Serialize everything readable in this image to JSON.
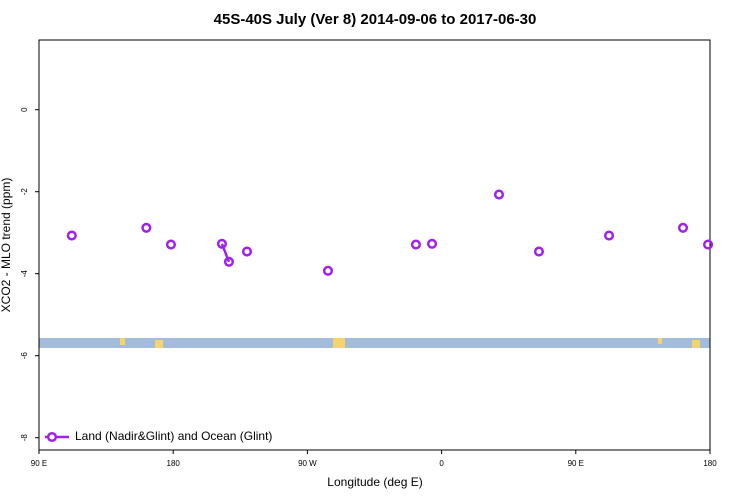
{
  "chart_data": {
    "type": "scatter",
    "title": "45S-40S July (Ver 8)   2014-09-06 to 2017-06-30",
    "x_label": "Longitude (deg E)",
    "y_label": "XCO2 - MLO trend (ppm)",
    "xlim": [
      90,
      540
    ],
    "ylim": [
      -8.3,
      1.7
    ],
    "xticks": [
      {
        "value": 90,
        "label": "90 E"
      },
      {
        "value": 180,
        "label": "180"
      },
      {
        "value": 270,
        "label": "90 W"
      },
      {
        "value": 360,
        "label": "0"
      },
      {
        "value": 450,
        "label": "90 E"
      },
      {
        "value": 540,
        "label": "180"
      }
    ],
    "yticks": [
      0,
      -2,
      -4,
      -6,
      -8
    ],
    "legend_position": "bottom-left",
    "series": [
      {
        "name": "Land (Nadir&Glint) and Ocean (Glint)",
        "color": "#a020f0",
        "x": [
          112,
          162,
          178.5,
          212.7,
          217.4,
          229.5,
          283.8,
          342.8,
          353.6,
          398.5,
          425.3,
          472.3,
          521.9,
          538.7
        ],
        "values": [
          -3.07,
          -2.88,
          -3.29,
          -3.27,
          -3.71,
          -3.46,
          -3.93,
          -3.29,
          -3.27,
          -2.07,
          -3.46,
          -3.07,
          -2.88,
          -3.29
        ]
      }
    ]
  }
}
